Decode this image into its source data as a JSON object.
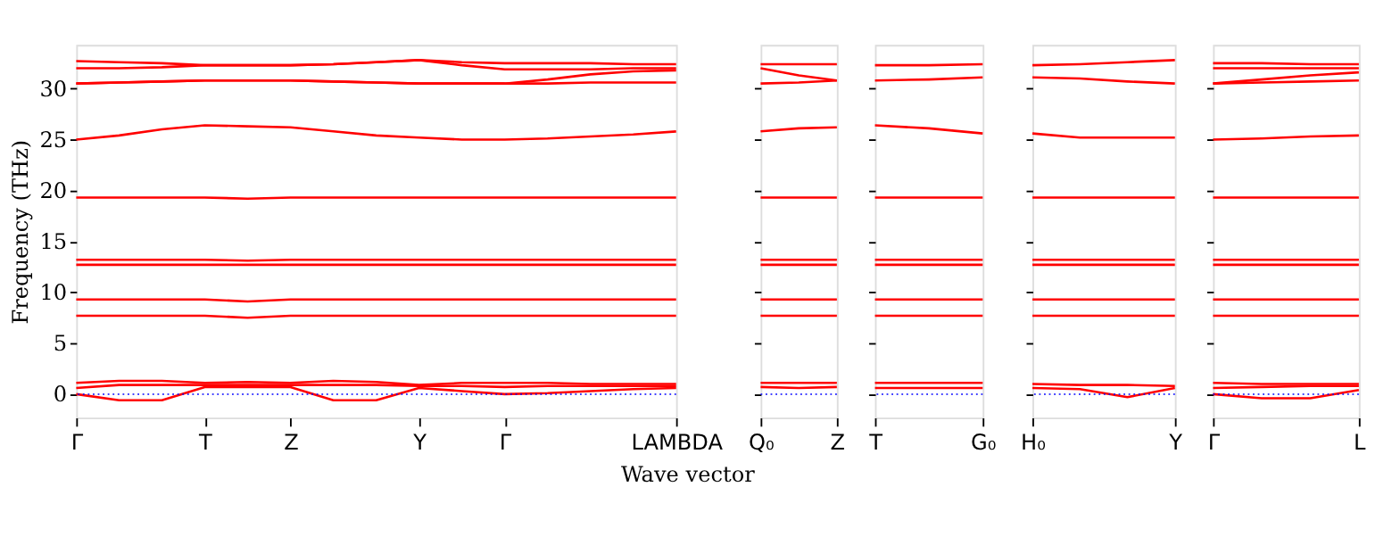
{
  "chart_data": [
    {
      "type": "line",
      "ylabel": "Frequency (THz)",
      "xlabel": "Wave vector",
      "ylim": [
        -2.3,
        34.3
      ],
      "yticks": [
        0,
        5,
        10,
        15,
        20,
        25,
        30
      ],
      "grid": false,
      "legend": false,
      "line_style": "solid",
      "marker": "none",
      "categories": [
        "Γ",
        null,
        null,
        "T",
        null,
        "Z",
        null,
        null,
        "Y",
        null,
        "Γ",
        null,
        null,
        null,
        "LAMBDA"
      ],
      "series": [
        {
          "color": "#ff0000",
          "values": [
            32.7,
            32.6,
            32.5,
            32.3,
            32.3,
            32.3,
            32.4,
            32.6,
            32.8,
            32.6,
            32.5,
            32.5,
            32.5,
            32.4,
            32.4
          ]
        },
        {
          "color": "#ff0000",
          "values": [
            32.0,
            32.0,
            32.1,
            32.3,
            32.3,
            32.3,
            32.4,
            32.6,
            32.8,
            32.3,
            31.9,
            31.9,
            31.9,
            32.0,
            32.0
          ]
        },
        {
          "color": "#ff0000",
          "values": [
            30.5,
            30.6,
            30.7,
            30.8,
            30.8,
            30.8,
            30.7,
            30.6,
            30.5,
            30.5,
            30.5,
            30.9,
            31.4,
            31.7,
            31.8
          ]
        },
        {
          "color": "#ff0000",
          "values": [
            30.5,
            30.6,
            30.7,
            30.8,
            30.8,
            30.8,
            30.7,
            30.6,
            30.5,
            30.5,
            30.5,
            30.5,
            30.6,
            30.6,
            30.6
          ]
        },
        {
          "color": "#ff0000",
          "values": [
            25.0,
            25.4,
            26.0,
            26.4,
            26.3,
            26.2,
            25.8,
            25.4,
            25.2,
            25.0,
            25.0,
            25.1,
            25.3,
            25.5,
            25.8
          ]
        },
        {
          "color": "#ff0000",
          "values": [
            19.3,
            19.3,
            19.3,
            19.3,
            19.2,
            19.3,
            19.3,
            19.3,
            19.3,
            19.3,
            19.3,
            19.3,
            19.3,
            19.3,
            19.3
          ]
        },
        {
          "color": "#ff0000",
          "values": [
            13.2,
            13.2,
            13.2,
            13.2,
            13.1,
            13.2,
            13.2,
            13.2,
            13.2,
            13.2,
            13.2,
            13.2,
            13.2,
            13.2,
            13.2
          ]
        },
        {
          "color": "#ff0000",
          "values": [
            12.7,
            12.7,
            12.7,
            12.7,
            12.7,
            12.7,
            12.7,
            12.7,
            12.7,
            12.7,
            12.7,
            12.7,
            12.7,
            12.7,
            12.7
          ]
        },
        {
          "color": "#ff0000",
          "values": [
            9.3,
            9.3,
            9.3,
            9.3,
            9.1,
            9.3,
            9.3,
            9.3,
            9.3,
            9.3,
            9.3,
            9.3,
            9.3,
            9.3,
            9.3
          ]
        },
        {
          "color": "#ff0000",
          "values": [
            7.7,
            7.7,
            7.7,
            7.7,
            7.5,
            7.7,
            7.7,
            7.7,
            7.7,
            7.7,
            7.7,
            7.7,
            7.7,
            7.7,
            7.7
          ]
        },
        {
          "color": "#ff0000",
          "values": [
            1.1,
            1.3,
            1.3,
            1.1,
            1.2,
            1.1,
            1.3,
            1.2,
            0.9,
            1.1,
            1.1,
            1.1,
            1.0,
            1.0,
            1.0
          ]
        },
        {
          "color": "#ff0000",
          "values": [
            0.6,
            0.9,
            0.9,
            0.9,
            0.9,
            0.9,
            0.9,
            0.9,
            0.8,
            0.8,
            0.7,
            0.8,
            0.8,
            0.8,
            0.8
          ]
        },
        {
          "color": "#ff0000",
          "values": [
            0,
            -0.6,
            -0.6,
            0.7,
            0.7,
            0.7,
            -0.6,
            -0.6,
            0.6,
            0.3,
            0,
            0.1,
            0.3,
            0.5,
            0.6
          ]
        }
      ],
      "ref_lines": [
        {
          "axis": "y",
          "value": 0,
          "color": "#0000ff",
          "line_style": "dotted"
        }
      ]
    },
    {
      "type": "line",
      "ylim": [
        -2.3,
        34.3
      ],
      "yticks": [
        0,
        5,
        10,
        15,
        20,
        25,
        30
      ],
      "tick_labels": "x",
      "grid": false,
      "legend": false,
      "line_style": "solid",
      "marker": "none",
      "categories": [
        "Q₀",
        null,
        "Z"
      ],
      "series": [
        {
          "color": "#ff0000",
          "values": [
            32.4,
            32.4,
            32.4
          ]
        },
        {
          "color": "#ff0000",
          "values": [
            32.0,
            31.3,
            30.8
          ]
        },
        {
          "color": "#ff0000",
          "values": [
            30.5,
            30.6,
            30.8
          ]
        },
        {
          "color": "#ff0000",
          "values": [
            25.8,
            26.1,
            26.2
          ]
        },
        {
          "color": "#ff0000",
          "values": [
            19.3,
            19.3,
            19.3
          ]
        },
        {
          "color": "#ff0000",
          "values": [
            13.2,
            13.2,
            13.2
          ]
        },
        {
          "color": "#ff0000",
          "values": [
            12.7,
            12.7,
            12.7
          ]
        },
        {
          "color": "#ff0000",
          "values": [
            9.3,
            9.3,
            9.3
          ]
        },
        {
          "color": "#ff0000",
          "values": [
            7.7,
            7.7,
            7.7
          ]
        },
        {
          "color": "#ff0000",
          "values": [
            1.1,
            1.1,
            1.1
          ]
        },
        {
          "color": "#ff0000",
          "values": [
            0.7,
            0.6,
            0.7
          ]
        }
      ],
      "ref_lines": [
        {
          "axis": "y",
          "value": 0,
          "color": "#0000ff",
          "line_style": "dotted"
        }
      ]
    },
    {
      "type": "line",
      "ylim": [
        -2.3,
        34.3
      ],
      "yticks": [
        0,
        5,
        10,
        15,
        20,
        25,
        30
      ],
      "tick_labels": "x",
      "grid": false,
      "legend": false,
      "line_style": "solid",
      "marker": "none",
      "categories": [
        "T",
        null,
        "G₀"
      ],
      "series": [
        {
          "color": "#ff0000",
          "values": [
            32.3,
            32.3,
            32.4
          ]
        },
        {
          "color": "#ff0000",
          "values": [
            30.8,
            30.9,
            31.1
          ]
        },
        {
          "color": "#ff0000",
          "values": [
            26.4,
            26.1,
            25.6
          ]
        },
        {
          "color": "#ff0000",
          "values": [
            19.3,
            19.3,
            19.3
          ]
        },
        {
          "color": "#ff0000",
          "values": [
            13.2,
            13.2,
            13.2
          ]
        },
        {
          "color": "#ff0000",
          "values": [
            12.7,
            12.7,
            12.7
          ]
        },
        {
          "color": "#ff0000",
          "values": [
            9.3,
            9.3,
            9.3
          ]
        },
        {
          "color": "#ff0000",
          "values": [
            7.7,
            7.7,
            7.7
          ]
        },
        {
          "color": "#ff0000",
          "values": [
            1.1,
            1.1,
            1.1
          ]
        },
        {
          "color": "#ff0000",
          "values": [
            0.6,
            0.6,
            0.6
          ]
        }
      ],
      "ref_lines": [
        {
          "axis": "y",
          "value": 0,
          "color": "#0000ff",
          "line_style": "dotted"
        }
      ]
    },
    {
      "type": "line",
      "ylim": [
        -2.3,
        34.3
      ],
      "yticks": [
        0,
        5,
        10,
        15,
        20,
        25,
        30
      ],
      "tick_labels": "x",
      "grid": false,
      "legend": false,
      "line_style": "solid",
      "marker": "none",
      "categories": [
        "H₀",
        null,
        null,
        "Y"
      ],
      "series": [
        {
          "color": "#ff0000",
          "values": [
            32.3,
            32.4,
            32.6,
            32.8
          ]
        },
        {
          "color": "#ff0000",
          "values": [
            31.1,
            31.0,
            30.7,
            30.5
          ]
        },
        {
          "color": "#ff0000",
          "values": [
            25.6,
            25.2,
            25.2,
            25.2
          ]
        },
        {
          "color": "#ff0000",
          "values": [
            19.3,
            19.3,
            19.3,
            19.3
          ]
        },
        {
          "color": "#ff0000",
          "values": [
            13.2,
            13.2,
            13.2,
            13.2
          ]
        },
        {
          "color": "#ff0000",
          "values": [
            12.7,
            12.7,
            12.7,
            12.7
          ]
        },
        {
          "color": "#ff0000",
          "values": [
            9.3,
            9.3,
            9.3,
            9.3
          ]
        },
        {
          "color": "#ff0000",
          "values": [
            7.7,
            7.7,
            7.7,
            7.7
          ]
        },
        {
          "color": "#ff0000",
          "values": [
            1.0,
            0.9,
            0.9,
            0.8
          ]
        },
        {
          "color": "#ff0000",
          "values": [
            0.6,
            0.5,
            -0.3,
            0.6
          ]
        }
      ],
      "ref_lines": [
        {
          "axis": "y",
          "value": 0,
          "color": "#0000ff",
          "line_style": "dotted"
        }
      ]
    },
    {
      "type": "line",
      "ylim": [
        -2.3,
        34.3
      ],
      "yticks": [
        0,
        5,
        10,
        15,
        20,
        25,
        30
      ],
      "tick_labels": "x",
      "grid": false,
      "legend": false,
      "line_style": "solid",
      "marker": "none",
      "categories": [
        "Γ",
        null,
        null,
        "L"
      ],
      "series": [
        {
          "color": "#ff0000",
          "values": [
            32.5,
            32.5,
            32.4,
            32.4
          ]
        },
        {
          "color": "#ff0000",
          "values": [
            32.0,
            32.0,
            32.0,
            32.0
          ]
        },
        {
          "color": "#ff0000",
          "values": [
            30.5,
            30.9,
            31.3,
            31.6
          ]
        },
        {
          "color": "#ff0000",
          "values": [
            30.5,
            30.6,
            30.7,
            30.8
          ]
        },
        {
          "color": "#ff0000",
          "values": [
            25.0,
            25.1,
            25.3,
            25.4
          ]
        },
        {
          "color": "#ff0000",
          "values": [
            19.3,
            19.3,
            19.3,
            19.3
          ]
        },
        {
          "color": "#ff0000",
          "values": [
            13.2,
            13.2,
            13.2,
            13.2
          ]
        },
        {
          "color": "#ff0000",
          "values": [
            12.7,
            12.7,
            12.7,
            12.7
          ]
        },
        {
          "color": "#ff0000",
          "values": [
            9.3,
            9.3,
            9.3,
            9.3
          ]
        },
        {
          "color": "#ff0000",
          "values": [
            7.7,
            7.7,
            7.7,
            7.7
          ]
        },
        {
          "color": "#ff0000",
          "values": [
            1.1,
            1.0,
            1.0,
            1.0
          ]
        },
        {
          "color": "#ff0000",
          "values": [
            0.6,
            0.7,
            0.8,
            0.8
          ]
        },
        {
          "color": "#ff0000",
          "values": [
            0,
            -0.4,
            -0.4,
            0.4
          ]
        }
      ],
      "ref_lines": [
        {
          "axis": "y",
          "value": 0,
          "color": "#0000ff",
          "line_style": "dotted"
        }
      ]
    }
  ]
}
